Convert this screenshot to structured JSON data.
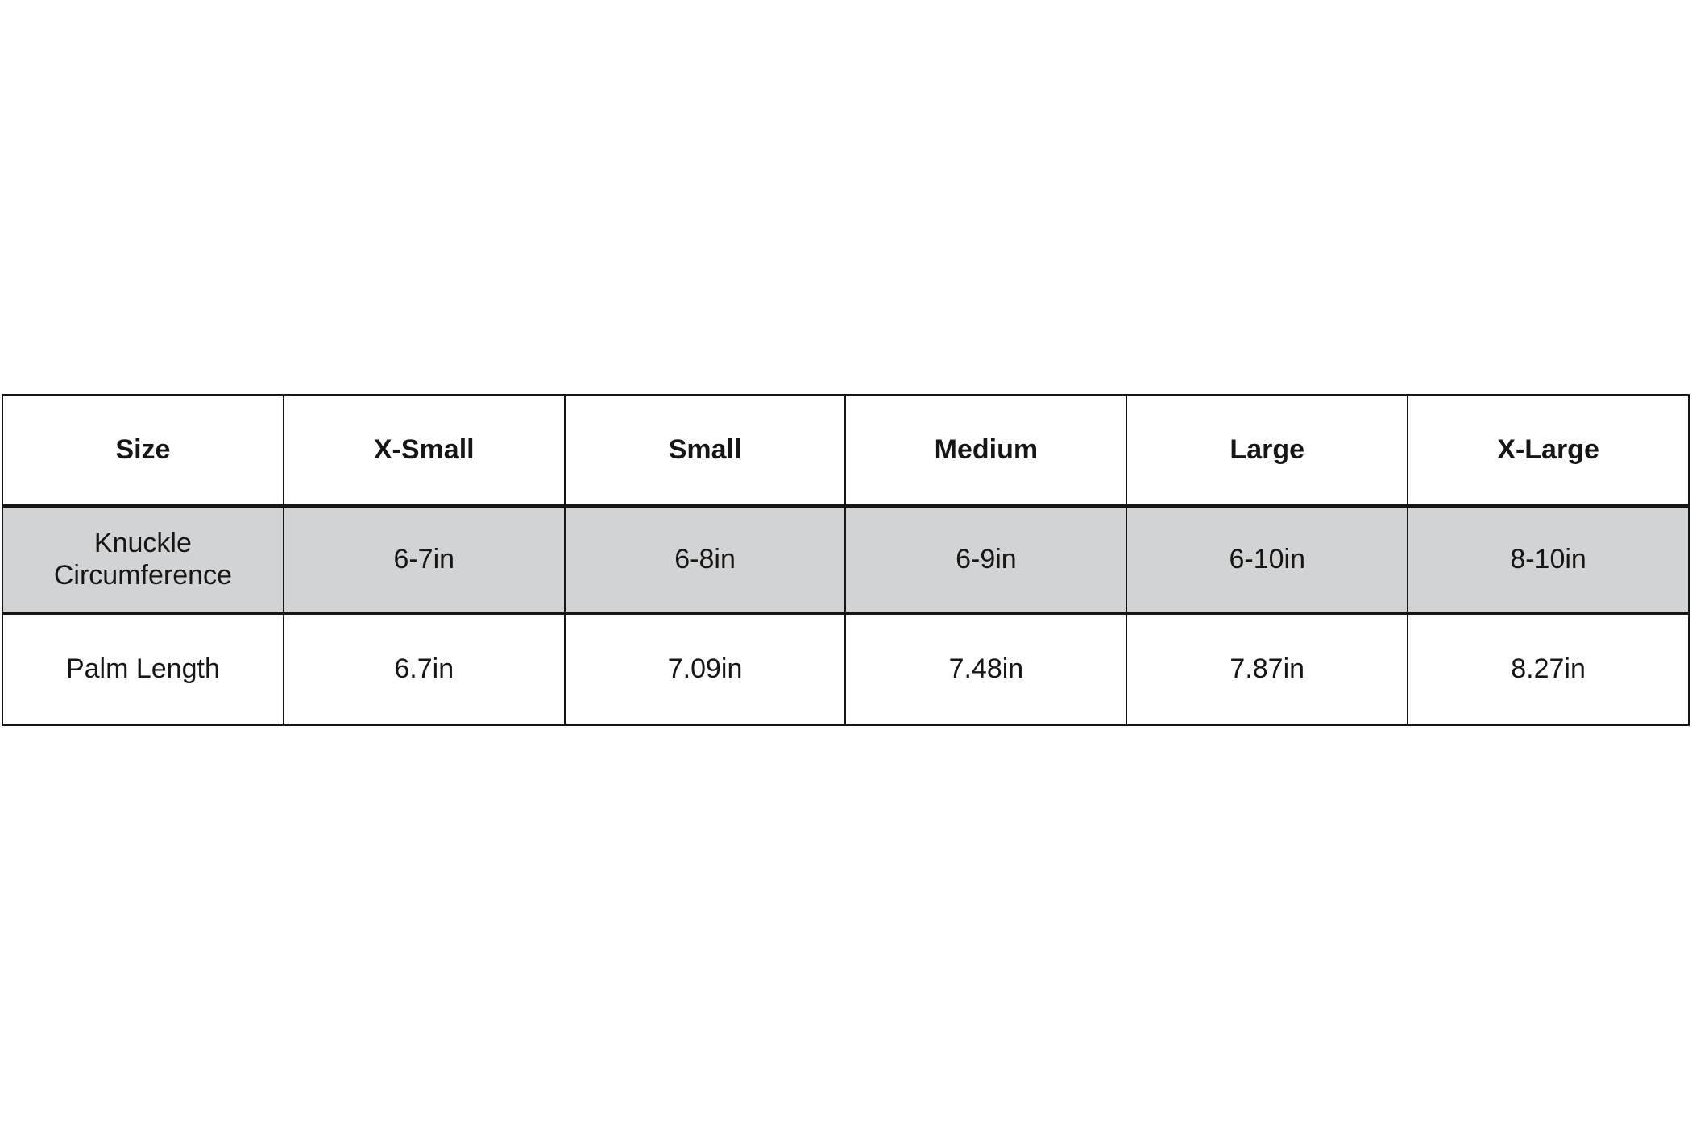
{
  "size_chart": {
    "columns": [
      "Size",
      "X-Small",
      "Small",
      "Medium",
      "Large",
      "X-Large"
    ],
    "rows": [
      {
        "label": "Knuckle\nCircumference",
        "values": [
          "6-7in",
          "6-8in",
          "6-9in",
          "6-10in",
          "8-10in"
        ],
        "highlighted": true
      },
      {
        "label": "Palm Length",
        "values": [
          "6.7in",
          "7.09in",
          "7.48in",
          "7.87in",
          "8.27in"
        ],
        "highlighted": false
      }
    ],
    "colors": {
      "highlight_row_bg": "#d2d3d5",
      "border": "#161616",
      "text": "#161616",
      "background": "#ffffff"
    }
  }
}
